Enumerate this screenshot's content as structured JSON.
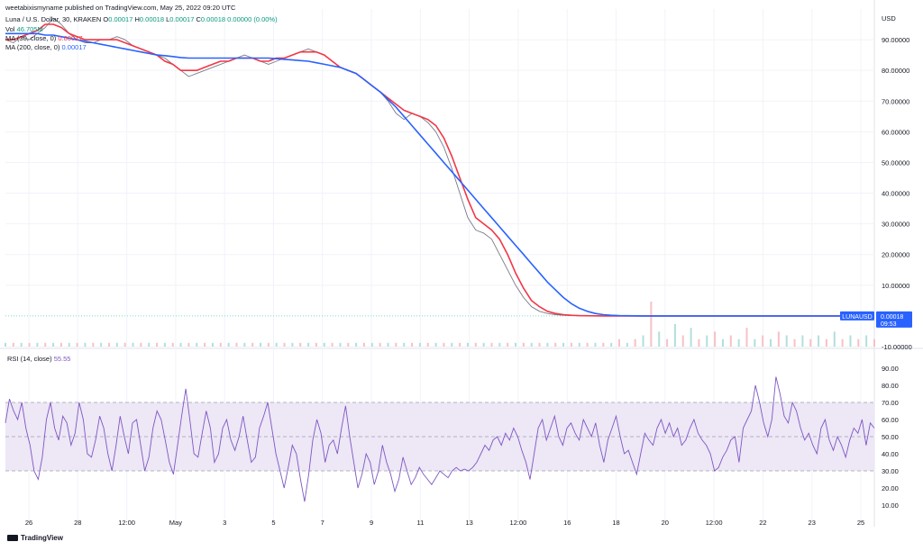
{
  "header": {
    "publisher": "weetabixismyname published on TradingView.com, May 25, 2022 09:20 UTC",
    "symbol_line": "Luna / U.S. Dollar, 30, KRAKEN",
    "ohlc": {
      "o_label": "O",
      "o": "0.00017",
      "h_label": "H",
      "h": "0.00018",
      "l_label": "L",
      "l": "0.00017",
      "c_label": "C",
      "c": "0.00018",
      "change": "0.00000 (0.00%)"
    },
    "vol_label": "Vol",
    "vol_value": "46.705M",
    "ma30_label": "MA (30, close, 0)",
    "ma30_value": "0.00017",
    "ma200_label": "MA (200, close, 0)",
    "ma200_value": "0.00017"
  },
  "price_axis": {
    "currency": "USD",
    "ticks": [
      "90.00000",
      "80.00000",
      "70.00000",
      "60.00000",
      "50.00000",
      "40.00000",
      "30.00000",
      "20.00000",
      "10.00000",
      "-10.00000"
    ],
    "last_symbol": "LUNAUSD",
    "last_price": "0.00018",
    "countdown": "09:53"
  },
  "rsi": {
    "label": "RSI (14, close)",
    "value": "55.55",
    "ticks": [
      "90.00",
      "80.00",
      "70.00",
      "60.00",
      "50.00",
      "40.00",
      "30.00",
      "20.00",
      "10.00"
    ],
    "upper_band": 70,
    "lower_band": 30,
    "middle": 50,
    "series": [
      58,
      72,
      65,
      60,
      70,
      55,
      45,
      30,
      25,
      38,
      60,
      70,
      55,
      48,
      62,
      58,
      45,
      52,
      70,
      60,
      40,
      38,
      48,
      62,
      55,
      40,
      30,
      45,
      62,
      50,
      40,
      58,
      60,
      45,
      30,
      38,
      55,
      65,
      60,
      48,
      35,
      28,
      45,
      62,
      78,
      60,
      40,
      38,
      52,
      65,
      55,
      35,
      40,
      55,
      60,
      48,
      42,
      50,
      62,
      48,
      35,
      38,
      55,
      62,
      70,
      55,
      40,
      30,
      20,
      32,
      45,
      40,
      25,
      12,
      28,
      48,
      60,
      52,
      35,
      45,
      48,
      40,
      55,
      68,
      50,
      35,
      20,
      28,
      40,
      35,
      22,
      30,
      45,
      35,
      28,
      18,
      25,
      38,
      30,
      22,
      26,
      32,
      28,
      25,
      22,
      26,
      30,
      28,
      26,
      30,
      32,
      30,
      31,
      30,
      32,
      35,
      40,
      45,
      42,
      48,
      50,
      45,
      52,
      48,
      55,
      50,
      42,
      35,
      25,
      40,
      55,
      60,
      48,
      55,
      62,
      50,
      45,
      55,
      58,
      52,
      48,
      60,
      55,
      50,
      58,
      45,
      35,
      48,
      55,
      62,
      50,
      40,
      42,
      35,
      28,
      40,
      52,
      48,
      45,
      55,
      60,
      52,
      58,
      50,
      55,
      45,
      48,
      55,
      60,
      52,
      48,
      45,
      40,
      30,
      32,
      38,
      42,
      48,
      50,
      35,
      55,
      60,
      65,
      80,
      70,
      58,
      50,
      60,
      85,
      75,
      62,
      58,
      70,
      65,
      55,
      48,
      52,
      45,
      40,
      55,
      60,
      48,
      42,
      50,
      45,
      38,
      48,
      55,
      52,
      60,
      45,
      58,
      55
    ]
  },
  "chart_data": {
    "type": "line",
    "title": "Luna / U.S. Dollar, 30, KRAKEN",
    "xlabel": "",
    "ylabel": "USD",
    "x_ticks": [
      "26",
      "28",
      "12:00",
      "May",
      "3",
      "5",
      "7",
      "9",
      "11",
      "13",
      "12:00",
      "16",
      "18",
      "20",
      "12:00",
      "22",
      "23",
      "25"
    ],
    "ylim": [
      -10,
      100
    ],
    "grid": true,
    "legend": "top-left",
    "series": [
      {
        "name": "Luna / U.S. Dollar",
        "color": "#787b86",
        "values": [
          90,
          89,
          91,
          90,
          92,
          94,
          97,
          95,
          92,
          90,
          89,
          89,
          90,
          90,
          91,
          90,
          88,
          87,
          86,
          85,
          84,
          82,
          80,
          78,
          79,
          80,
          81,
          82,
          83,
          84,
          85,
          84,
          83,
          82,
          83,
          84,
          85,
          86,
          87,
          86,
          85,
          83,
          81,
          80,
          79,
          77,
          75,
          73,
          70,
          66,
          64,
          66,
          65,
          63,
          60,
          55,
          48,
          40,
          32,
          28,
          27,
          25,
          20,
          15,
          10,
          6,
          3,
          1.5,
          0.8,
          0.4,
          0.2,
          0.1,
          0.05,
          0.02,
          0.01,
          0.005,
          0.002,
          0.001,
          0.0005,
          0.0003,
          0.0002,
          0.0002,
          0.0002,
          0.0002,
          0.0002,
          0.0002,
          0.0002,
          0.0002,
          0.0002,
          0.0002,
          0.0002,
          0.0002,
          0.0002,
          0.0002,
          0.0002,
          0.0002,
          0.0002,
          0.0002,
          0.0002,
          0.0002,
          0.0002,
          0.0002,
          0.0002,
          0.0002,
          0.0002,
          0.0002,
          0.0002,
          0.0002,
          0.0002,
          0.0002
        ]
      },
      {
        "name": "MA (30, close, 0)",
        "color": "#f23645",
        "values": [
          90,
          90,
          91,
          92,
          93,
          95,
          95,
          94,
          92,
          91,
          90,
          90,
          90,
          90,
          90,
          89,
          88,
          87,
          86,
          85,
          83,
          82,
          80,
          80,
          80,
          81,
          82,
          83,
          83,
          84,
          84,
          84,
          83,
          83,
          84,
          84,
          85,
          86,
          86,
          86,
          85,
          83,
          81,
          80,
          79,
          77,
          75,
          73,
          71,
          69,
          67,
          66,
          65,
          64,
          62,
          58,
          52,
          45,
          38,
          32,
          30,
          28,
          25,
          20,
          14,
          9,
          5,
          3,
          1.5,
          0.8,
          0.4,
          0.2,
          0.1,
          0.05,
          0.02,
          0.01,
          0.005,
          0.002,
          0.001,
          0.0005,
          0.0003,
          0.0002,
          0.0002,
          0.0002,
          0.0002,
          0.0002,
          0.0002,
          0.0002,
          0.0002,
          0.0002,
          0.0002,
          0.0002,
          0.0002,
          0.0002,
          0.0002,
          0.0002,
          0.0002,
          0.0002,
          0.0002,
          0.0002,
          0.0002,
          0.0002,
          0.0002,
          0.0002,
          0.0002,
          0.0002,
          0.0002,
          0.0002,
          0.0002,
          0.0002
        ]
      },
      {
        "name": "MA (200, close, 0)",
        "color": "#2962ff",
        "values": [
          92,
          92,
          92,
          92,
          92,
          91.5,
          91.5,
          91,
          90.5,
          90,
          89.5,
          89,
          88.5,
          88,
          87.5,
          87,
          86.5,
          86,
          85.5,
          85,
          84.8,
          84.5,
          84.2,
          84,
          84,
          84,
          84,
          84,
          84,
          84,
          84,
          84,
          84,
          84,
          83.8,
          83.6,
          83.4,
          83.2,
          83,
          82.5,
          82,
          81.5,
          81,
          80,
          79,
          77,
          75,
          73,
          70.5,
          68,
          65,
          62,
          59,
          56,
          53,
          50,
          47,
          44,
          41,
          38,
          35,
          32,
          29,
          26,
          23,
          20,
          17,
          14,
          11,
          8.5,
          6,
          4,
          2.5,
          1.5,
          0.8,
          0.4,
          0.2,
          0.1,
          0.05,
          0.02,
          0.01,
          0.005,
          0.002,
          0.001,
          0.0005,
          0.0003,
          0.0002,
          0.0002,
          0.0002,
          0.0002,
          0.0002,
          0.0002,
          0.0002,
          0.0002,
          0.0002,
          0.0002,
          0.0002,
          0.0002,
          0.0002,
          0.0002,
          0.0002,
          0.0002,
          0.0002,
          0.0002,
          0.0002,
          0.0002,
          0.0002,
          0.0002,
          0.0002,
          0.0002
        ]
      }
    ],
    "volume": [
      1,
      1,
      1,
      1,
      1,
      1,
      1,
      1,
      1,
      1,
      1,
      1,
      1,
      1,
      1,
      1,
      1,
      1,
      1,
      1,
      1,
      1,
      1,
      1,
      1,
      1,
      1,
      1,
      1,
      1,
      1,
      1,
      1,
      1,
      1,
      1,
      1,
      1,
      1,
      1,
      1,
      1,
      1,
      1,
      1,
      1,
      1,
      1,
      1,
      1,
      1,
      1,
      1,
      1,
      1,
      1,
      1,
      1,
      1,
      1,
      1,
      1,
      1,
      1,
      1,
      1,
      1,
      1,
      1,
      1,
      1,
      1,
      1,
      1,
      1,
      1,
      1,
      2,
      1,
      2,
      3,
      12,
      4,
      2,
      6,
      3,
      5,
      2,
      3,
      4,
      2,
      3,
      2,
      5,
      2,
      3,
      2,
      4,
      3,
      2,
      3,
      2,
      3,
      2,
      4,
      2,
      3,
      2,
      3,
      2
    ]
  },
  "footer": {
    "brand": "TradingView"
  },
  "colors": {
    "price_line": "#787b86",
    "ma30": "#f23645",
    "ma200": "#2962ff",
    "rsi": "#7e57c2",
    "rsi_band": "#ede7f6",
    "grid": "#f0f3fa",
    "badge": "#2962ff"
  }
}
